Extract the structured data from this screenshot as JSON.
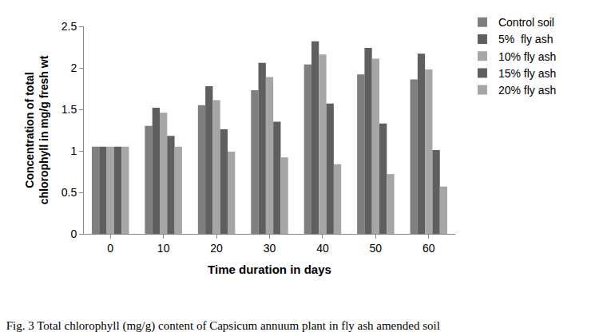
{
  "chart_data": {
    "type": "bar",
    "title": "Fig. 3 Total chlorophyll (mg/g) content of Capsicum annuum plant in fly ash amended soil",
    "x_label": "Time duration in days",
    "y_label": "Concentration of total chlorophyll in mg/g fresh wt",
    "categories": [
      "0",
      "10",
      "20",
      "30",
      "40",
      "50",
      "60"
    ],
    "series": [
      {
        "name": "Control soil",
        "color": "#7f7f7f",
        "values": [
          1.05,
          1.3,
          1.55,
          1.73,
          2.04,
          1.92,
          1.86
        ]
      },
      {
        "name": "5%  fly ash",
        "color": "#5f5f5f",
        "values": [
          1.05,
          1.52,
          1.78,
          2.06,
          2.32,
          2.24,
          2.17
        ]
      },
      {
        "name": "10% fly ash",
        "color": "#a6a6a6",
        "values": [
          1.05,
          1.46,
          1.61,
          1.89,
          2.16,
          2.11,
          1.98
        ]
      },
      {
        "name": "15% fly ash",
        "color": "#5f5f5f",
        "values": [
          1.05,
          1.18,
          1.26,
          1.35,
          1.57,
          1.33,
          1.01
        ]
      },
      {
        "name": "20% fly ash",
        "color": "#a6a6a6",
        "values": [
          1.05,
          1.05,
          0.99,
          0.92,
          0.84,
          0.72,
          0.57
        ]
      }
    ],
    "ylim": [
      0,
      2.5
    ],
    "yticks": [
      0,
      0.5,
      1,
      1.5,
      2,
      2.5
    ],
    "grid": false,
    "legend": "right"
  }
}
